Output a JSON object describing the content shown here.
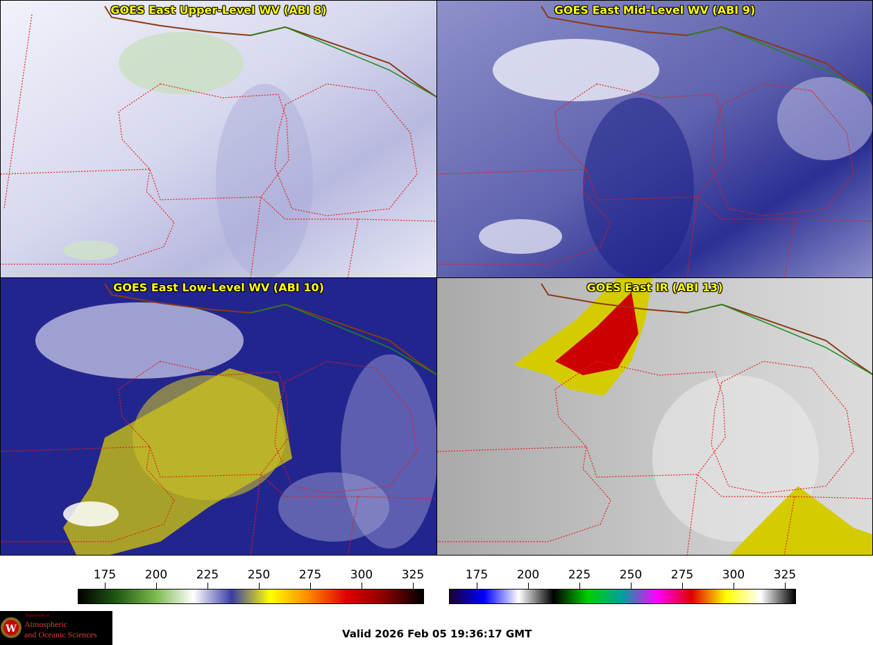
{
  "panels": [
    {
      "id": "upper",
      "title": "GOES East Upper-Level WV (ABI 8)",
      "base": "#d4d6ea",
      "accent": "#2a2c8c"
    },
    {
      "id": "mid",
      "title": "GOES East Mid-Level WV (ABI 9)",
      "base": "#6c6fb6",
      "accent": "#1a1c86"
    },
    {
      "id": "low",
      "title": "GOES East Low-Level WV (ABI 10)",
      "base": "#23258f",
      "accent": "#b9b31a"
    },
    {
      "id": "ir",
      "title": "GOES East IR (ABI 13)",
      "base": "#bdbdbd",
      "accent": "#d10000"
    }
  ],
  "colorbar_wv": {
    "ticks": [
      "175",
      "200",
      "225",
      "250",
      "275",
      "300",
      "325"
    ],
    "stops": [
      "#000000",
      "#1f5a14",
      "#79b84a",
      "#ffffff",
      "#3b3da5",
      "#ffff00",
      "#ff8800",
      "#e00000",
      "#8a0000",
      "#000000"
    ]
  },
  "colorbar_ir": {
    "ticks": [
      "175",
      "200",
      "225",
      "250",
      "275",
      "300",
      "325"
    ],
    "stops": [
      "#1a0030",
      "#0000ff",
      "#ffffff",
      "#000000",
      "#00d000",
      "#00a0a0",
      "#ff00ff",
      "#e00000",
      "#ffff00",
      "#ffffff",
      "#000000"
    ]
  },
  "valid_text": "Valid 2026 Feb 05 19:36:17 GMT",
  "logo": {
    "dept": "Department of",
    "line1": "Atmospheric",
    "line2": "and Oceanic Sciences"
  },
  "map_colors": {
    "state_border": "#e21d1d",
    "intl_border": "#8a3a12",
    "coast_border": "#1a8a1a"
  }
}
